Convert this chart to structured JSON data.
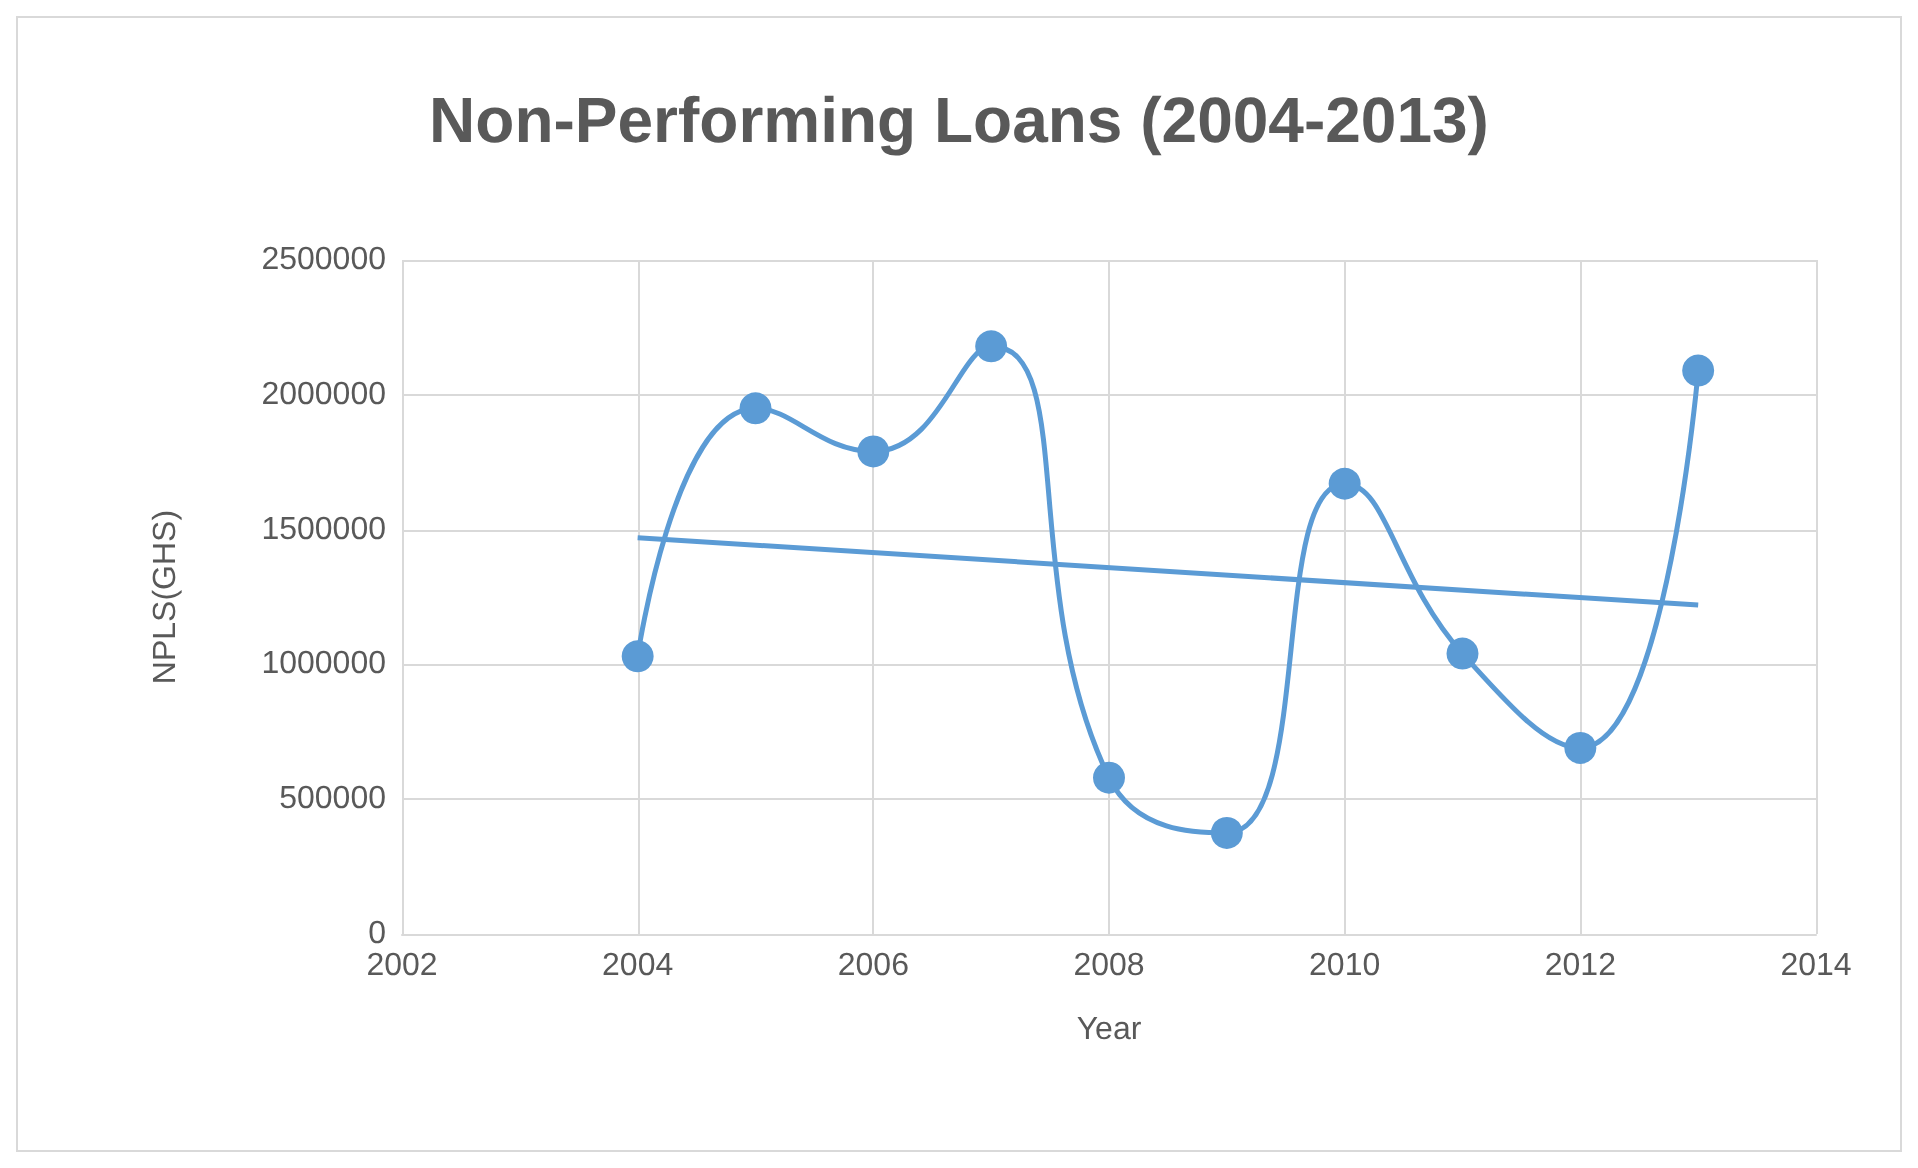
{
  "chart_data": {
    "type": "line",
    "title": "Non-Performing Loans (2004-2013)",
    "xlabel": "Year",
    "ylabel": "NPLS(GHS)",
    "x": [
      2004,
      2005,
      2006,
      2007,
      2008,
      2009,
      2010,
      2011,
      2012,
      2013
    ],
    "series": [
      {
        "color": "#5b9bd5",
        "values": [
          1030000,
          1950000,
          1790000,
          2180000,
          580000,
          375000,
          1670000,
          1040000,
          690000,
          2090000
        ],
        "marker": "circle"
      },
      {
        "color": "#5b9bd5",
        "x": [
          2004,
          2013
        ],
        "values": [
          1470000,
          1220000
        ],
        "marker": "none"
      }
    ],
    "xlim": [
      2002,
      2014
    ],
    "xticks": [
      2002,
      2004,
      2006,
      2008,
      2010,
      2012,
      2014
    ],
    "ylim": [
      0,
      2500000
    ],
    "yticks": [
      0,
      500000,
      1000000,
      1500000,
      2000000,
      2500000
    ],
    "grid": true
  }
}
